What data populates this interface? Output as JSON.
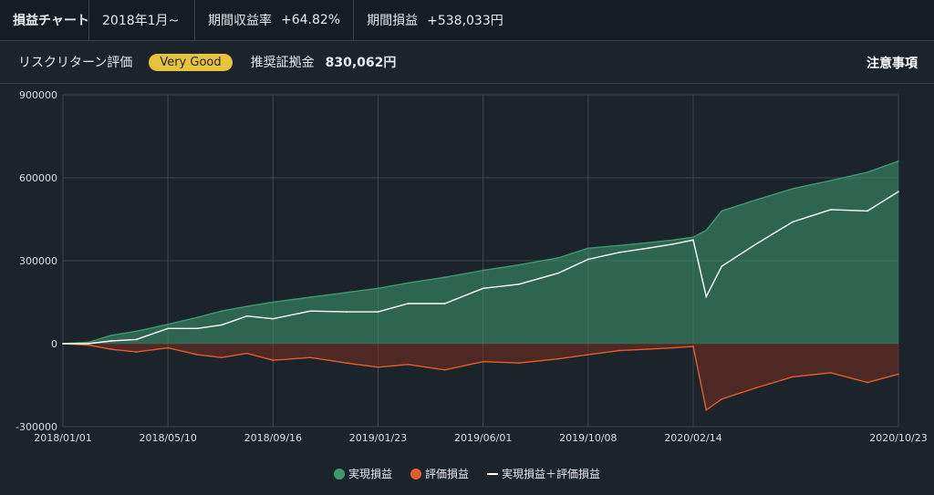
{
  "header": {
    "title": "損益チャート",
    "period": "2018年1月~",
    "return_label": "期間収益率",
    "return_value": "+64.82%",
    "pl_label": "期間損益",
    "pl_value": "+538,033円"
  },
  "subheader": {
    "risk_label": "リスクリターン評価",
    "risk_badge": "Very Good",
    "margin_label": "推奨証拠金",
    "margin_value": "830,062円",
    "notes_link": "注意事項"
  },
  "colors": {
    "realized": "#3d9a6f",
    "unrealized": "#e35d2d",
    "combined": "#ffffff",
    "badge": "#e8c33c"
  },
  "chart_data": {
    "type": "area",
    "xlabel": "",
    "ylabel": "",
    "ylim": [
      -300000,
      900000
    ],
    "yticks": [
      900000,
      600000,
      300000,
      0,
      -300000
    ],
    "ytick_labels": [
      "900000",
      "600000",
      "300000",
      "0",
      "-300000"
    ],
    "xticks": [
      "2018/01/01",
      "2018/05/10",
      "2018/09/16",
      "2019/01/23",
      "2019/06/01",
      "2019/10/08",
      "2020/02/14",
      "2020/10/23"
    ],
    "grid": true,
    "legend_position": "bottom-center",
    "series": [
      {
        "name": "実現損益",
        "type": "area",
        "x": [
          "2018/01/01",
          "2018/02/01",
          "2018/03/01",
          "2018/04/01",
          "2018/05/10",
          "2018/06/15",
          "2018/07/15",
          "2018/08/15",
          "2018/09/16",
          "2018/11/01",
          "2018/12/15",
          "2019/01/23",
          "2019/03/01",
          "2019/04/15",
          "2019/06/01",
          "2019/07/15",
          "2019/09/01",
          "2019/10/08",
          "2019/11/15",
          "2019/12/20",
          "2020/01/20",
          "2020/02/14",
          "2020/03/01",
          "2020/03/20",
          "2020/05/01",
          "2020/06/15",
          "2020/08/01",
          "2020/09/15",
          "2020/10/23"
        ],
        "values": [
          0,
          5000,
          30000,
          45000,
          70000,
          95000,
          118000,
          135000,
          150000,
          168000,
          185000,
          200000,
          220000,
          240000,
          265000,
          285000,
          310000,
          345000,
          355000,
          365000,
          375000,
          385000,
          410000,
          480000,
          520000,
          560000,
          590000,
          620000,
          660000
        ]
      },
      {
        "name": "評価損益",
        "type": "area",
        "x": [
          "2018/01/01",
          "2018/02/01",
          "2018/03/01",
          "2018/04/01",
          "2018/05/10",
          "2018/06/15",
          "2018/07/15",
          "2018/08/15",
          "2018/09/16",
          "2018/11/01",
          "2018/12/15",
          "2019/01/23",
          "2019/03/01",
          "2019/04/15",
          "2019/06/01",
          "2019/07/15",
          "2019/09/01",
          "2019/10/08",
          "2019/11/15",
          "2019/12/20",
          "2020/01/20",
          "2020/02/14",
          "2020/03/01",
          "2020/03/20",
          "2020/05/01",
          "2020/06/15",
          "2020/08/01",
          "2020/09/15",
          "2020/10/23"
        ],
        "values": [
          0,
          -5000,
          -20000,
          -30000,
          -15000,
          -40000,
          -50000,
          -35000,
          -60000,
          -50000,
          -70000,
          -85000,
          -75000,
          -95000,
          -65000,
          -70000,
          -55000,
          -40000,
          -25000,
          -20000,
          -15000,
          -10000,
          -240000,
          -200000,
          -160000,
          -120000,
          -105000,
          -140000,
          -110000
        ]
      },
      {
        "name": "実現損益＋評価損益",
        "type": "line",
        "x": [
          "2018/01/01",
          "2018/02/01",
          "2018/03/01",
          "2018/04/01",
          "2018/05/10",
          "2018/06/15",
          "2018/07/15",
          "2018/08/15",
          "2018/09/16",
          "2018/11/01",
          "2018/12/15",
          "2019/01/23",
          "2019/03/01",
          "2019/04/15",
          "2019/06/01",
          "2019/07/15",
          "2019/09/01",
          "2019/10/08",
          "2019/11/15",
          "2019/12/20",
          "2020/01/20",
          "2020/02/14",
          "2020/03/01",
          "2020/03/20",
          "2020/05/01",
          "2020/06/15",
          "2020/08/01",
          "2020/09/15",
          "2020/10/23"
        ],
        "values": [
          0,
          0,
          10000,
          15000,
          55000,
          55000,
          68000,
          100000,
          90000,
          118000,
          115000,
          115000,
          145000,
          145000,
          200000,
          215000,
          255000,
          305000,
          330000,
          345000,
          360000,
          375000,
          170000,
          280000,
          360000,
          440000,
          485000,
          480000,
          550000
        ]
      }
    ]
  }
}
